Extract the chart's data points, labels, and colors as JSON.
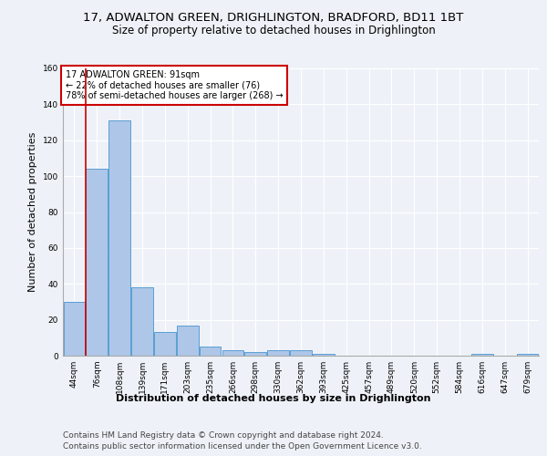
{
  "title_line1": "17, ADWALTON GREEN, DRIGHLINGTON, BRADFORD, BD11 1BT",
  "title_line2": "Size of property relative to detached houses in Drighlington",
  "xlabel": "Distribution of detached houses by size in Drighlington",
  "ylabel": "Number of detached properties",
  "bar_color": "#aec6e8",
  "bar_edge_color": "#5a9fd4",
  "categories": [
    "44sqm",
    "76sqm",
    "108sqm",
    "139sqm",
    "171sqm",
    "203sqm",
    "235sqm",
    "266sqm",
    "298sqm",
    "330sqm",
    "362sqm",
    "393sqm",
    "425sqm",
    "457sqm",
    "489sqm",
    "520sqm",
    "552sqm",
    "584sqm",
    "616sqm",
    "647sqm",
    "679sqm"
  ],
  "values": [
    30,
    104,
    131,
    38,
    13,
    17,
    5,
    3,
    2,
    3,
    3,
    1,
    0,
    0,
    0,
    0,
    0,
    0,
    1,
    0,
    1
  ],
  "ylim": [
    0,
    160
  ],
  "yticks": [
    0,
    20,
    40,
    60,
    80,
    100,
    120,
    140,
    160
  ],
  "annotation_line1": "17 ADWALTON GREEN: 91sqm",
  "annotation_line2": "← 22% of detached houses are smaller (76)",
  "annotation_line3": "78% of semi-detached houses are larger (268) →",
  "annotation_box_color": "#ffffff",
  "annotation_box_edgecolor": "#cc0000",
  "property_line_color": "#cc0000",
  "footer_line1": "Contains HM Land Registry data © Crown copyright and database right 2024.",
  "footer_line2": "Contains public sector information licensed under the Open Government Licence v3.0.",
  "background_color": "#eef2f8",
  "plot_background": "#eef2f8",
  "grid_color": "#ffffff",
  "title_fontsize": 9.5,
  "subtitle_fontsize": 8.5,
  "axis_label_fontsize": 8,
  "tick_fontsize": 6.5,
  "annotation_fontsize": 7,
  "footer_fontsize": 6.5
}
